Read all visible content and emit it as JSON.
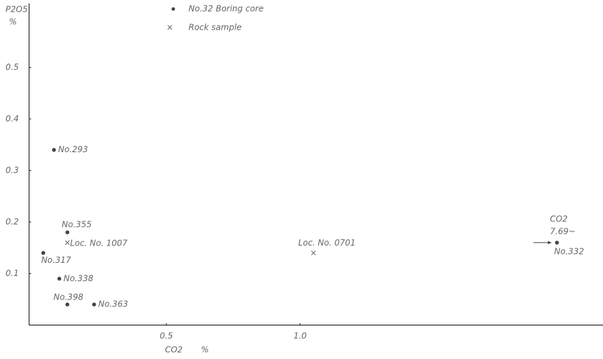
{
  "chart_data": {
    "type": "scatter",
    "xlabel": "CO2",
    "xunit": "%",
    "ylabel": "P2O5",
    "yunit": "%",
    "xlim": [
      0,
      2.1
    ],
    "ylim": [
      0,
      0.62
    ],
    "xticks": [
      0.5,
      {
        "value": 1,
        "label": "1.0"
      }
    ],
    "yticks": [
      0.1,
      0.2,
      0.3,
      0.4,
      0.5
    ],
    "grid": false,
    "series": [
      {
        "name": "No.32 Boring core",
        "color": "#444",
        "marker": "dot",
        "labels": [
          "No.293",
          "No.355",
          "No.317",
          "No.338",
          "No.398",
          "No.363",
          "No.332"
        ],
        "x": [
          0.08,
          0.13,
          0.04,
          0.1,
          0.13,
          0.23,
          1.96
        ],
        "values": [
          0.34,
          0.18,
          0.14,
          0.09,
          0.04,
          0.04,
          0.16
        ]
      },
      {
        "name": "Rock sample",
        "color": "#777",
        "marker": "x",
        "labels": [
          "Loc. No. 1007",
          "Loc. No. 0701"
        ],
        "x": [
          0.13,
          1.05
        ],
        "values": [
          0.16,
          0.14
        ]
      }
    ],
    "annotation": {
      "line1": "CO2",
      "line2": "7.69~"
    }
  }
}
